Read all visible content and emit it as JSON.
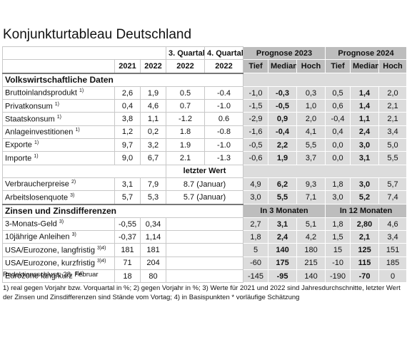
{
  "title": "Konjunkturtableau Deutschland",
  "table": {
    "columns_top": [
      "3. Quartal",
      "4. Quartal",
      "Prognose 2023",
      "Prognose 2024"
    ],
    "columns_sub": [
      "2021",
      "2022",
      "2022",
      "2022",
      "Tief",
      "Median",
      "Hoch",
      "Tief",
      "Median",
      "Hoch"
    ],
    "sections": [
      {
        "title": "Volkswirtschaftliche Daten",
        "rows": [
          {
            "label": "Bruttoinlandsprodukt",
            "note": "1)",
            "actual": [
              "2,6",
              "1,9"
            ],
            "recent": [
              "0.5",
              "-0.4"
            ],
            "forecast": [
              "-1,0",
              "-0,3",
              "0,3",
              "0,5",
              "1,4",
              "2,0"
            ]
          },
          {
            "label": "Privatkonsum",
            "note": "1)",
            "actual": [
              "0,4",
              "4,6"
            ],
            "recent": [
              "0.7",
              "-1.0"
            ],
            "forecast": [
              "-1,5",
              "-0,5",
              "1,0",
              "0,6",
              "1,4",
              "2,1"
            ]
          },
          {
            "label": "Staatskonsum",
            "note": "1)",
            "actual": [
              "3,8",
              "1,1"
            ],
            "recent": [
              "-1.2",
              "0.6"
            ],
            "forecast": [
              "-2,9",
              "0,9",
              "2,0",
              "-0,4",
              "1,1",
              "2,1"
            ]
          },
          {
            "label": "Anlageinvestitionen",
            "note": "1)",
            "actual": [
              "1,2",
              "0,2"
            ],
            "recent": [
              "1.8",
              "-0.8"
            ],
            "forecast": [
              "-1,6",
              "-0,4",
              "4,1",
              "0,4",
              "2,4",
              "3,4"
            ]
          },
          {
            "label": "Exporte",
            "note": "1)",
            "actual": [
              "9,7",
              "3,2"
            ],
            "recent": [
              "1.9",
              "-1.0"
            ],
            "forecast": [
              "-0,5",
              "2,2",
              "5,5",
              "0,0",
              "3,0",
              "5,0"
            ]
          },
          {
            "label": "Importe",
            "note": "1)",
            "actual": [
              "9,0",
              "6,7"
            ],
            "recent": [
              "2.1",
              "-1.3"
            ],
            "forecast": [
              "-0,6",
              "1,9",
              "3,7",
              "0,0",
              "3,1",
              "5,5"
            ]
          }
        ]
      },
      {
        "subheader": "letzter Wert",
        "rows": [
          {
            "label": "Verbraucherpreise",
            "note": "2)",
            "actual": [
              "3,1",
              "7,9"
            ],
            "recent": "8.7 (Januar)",
            "forecast": [
              "4,9",
              "6,2",
              "9,3",
              "1,8",
              "3,0",
              "5,7"
            ]
          },
          {
            "label": "Arbeitslosenquote",
            "note": "3)",
            "actual": [
              "5,7",
              "5,3"
            ],
            "recent": "5.7 (Januar)",
            "forecast": [
              "3,0",
              "5,5",
              "7,1",
              "3,0",
              "5,2",
              "7,4"
            ]
          }
        ]
      },
      {
        "title": "Zinsen und Zinsdifferenzen",
        "forecast_headers": [
          "In 3 Monaten",
          "In 12 Monaten"
        ],
        "rows": [
          {
            "label": "3-Monats-Geld",
            "note": "3)",
            "actual": [
              "-0,55",
              "0,34"
            ],
            "forecast": [
              "2,7",
              "3,1",
              "5,1",
              "1,8",
              "2,80",
              "4,6"
            ]
          },
          {
            "label": "10jährige Anleihen",
            "note": "3)",
            "actual": [
              "-0,37",
              "1,14"
            ],
            "forecast": [
              "1,8",
              "2,4",
              "4,2",
              "1,5",
              "2,1",
              "3,4"
            ]
          },
          {
            "label": "USA/Eurozone, langfristig",
            "note": "3)4)",
            "actual": [
              "181",
              "181"
            ],
            "forecast": [
              "5",
              "140",
              "180",
              "15",
              "125",
              "151"
            ]
          },
          {
            "label": "USA/Eurozone, kurzfristig",
            "note": "3)4)",
            "actual": [
              "71",
              "204"
            ],
            "forecast": [
              "-60",
              "175",
              "215",
              "-10",
              "115",
              "185"
            ]
          },
          {
            "label": "Eurozone lang/kurz",
            "note": "3)4)",
            "actual": [
              "18",
              "80"
            ],
            "forecast": [
              "-145",
              "-95",
              "140",
              "-190",
              "-70",
              "0"
            ]
          }
        ]
      }
    ]
  },
  "deadline": "Redaktionsschluss: 28. Februar",
  "footnote": "1) real gegen Vorjahr bzw. Vorquartal in %; 2) gegen Vorjahr in %; 3) Werte für 2021 und 2022 sind Jahresdurchschnitte, letzter Wert der Zinsen und Zinsdifferenzen sind Stände vom Vortag; 4) in Basispunkten * vorläufige Schätzung"
}
